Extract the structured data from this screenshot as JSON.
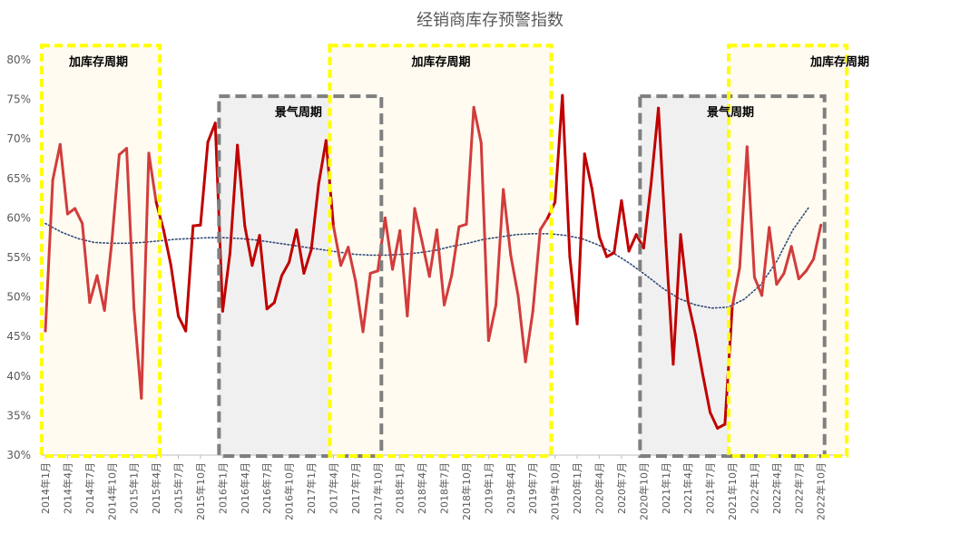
{
  "chart_data": {
    "type": "line",
    "title": "经销商库存预警指数",
    "xlabel": "",
    "ylabel": "",
    "ylim": [
      0.3,
      0.8
    ],
    "y_ticks": [
      "30%",
      "35%",
      "40%",
      "45%",
      "50%",
      "55%",
      "60%",
      "65%",
      "70%",
      "75%",
      "80%"
    ],
    "x_ticks": [
      "2014年1月",
      "2014年4月",
      "2014年7月",
      "2014年10月",
      "2015年1月",
      "2015年4月",
      "2015年7月",
      "2015年10月",
      "2016年1月",
      "2016年4月",
      "2016年7月",
      "2016年10月",
      "2017年1月",
      "2017年4月",
      "2017年7月",
      "2017年10月",
      "2018年1月",
      "2018年4月",
      "2018年7月",
      "2018年10月",
      "2019年1月",
      "2019年4月",
      "2019年7月",
      "2019年10月",
      "2020年1月",
      "2020年4月",
      "2020年7月",
      "2020年10月",
      "2021年1月",
      "2021年4月",
      "2021年7月",
      "2021年10月",
      "2022年1月",
      "2022年4月",
      "2022年7月",
      "2022年10月"
    ],
    "x_start": "2014-01",
    "series": [
      {
        "values": [
          0.457,
          0.648,
          0.693,
          0.605,
          0.612,
          0.593,
          0.493,
          0.527,
          0.483,
          0.57,
          0.68,
          0.688,
          0.485,
          0.372,
          0.682,
          0.62,
          0.585,
          0.54,
          0.476,
          0.457,
          0.59,
          0.591,
          0.696,
          0.72,
          0.482,
          0.556,
          0.692,
          0.59,
          0.54,
          0.578,
          0.485,
          0.493,
          0.527,
          0.544,
          0.585,
          0.53,
          0.56,
          0.643,
          0.698,
          0.59,
          0.54,
          0.563,
          0.52,
          0.456,
          0.53,
          0.533,
          0.6,
          0.535,
          0.584,
          0.476,
          0.612,
          0.57,
          0.526,
          0.585,
          0.49,
          0.527,
          0.589,
          0.592,
          0.74,
          0.695,
          0.445,
          0.49,
          0.636,
          0.553,
          0.502,
          0.418,
          0.482,
          0.585,
          0.6,
          0.62,
          0.755,
          0.551,
          0.466,
          0.681,
          0.637,
          0.576,
          0.551,
          0.556,
          0.622,
          0.558,
          0.579,
          0.562,
          0.643,
          0.739,
          0.57,
          0.415,
          0.579,
          0.495,
          0.453,
          0.402,
          0.354,
          0.334,
          0.339,
          0.488,
          0.537,
          0.69,
          0.525,
          0.502,
          0.588,
          0.516,
          0.53,
          0.564,
          0.523,
          0.533,
          0.548,
          0.591
        ],
        "color_light": "#d23c3c",
        "color_dark": "#c00000"
      },
      {
        "type": "trend",
        "values": [
          0.593,
          0.582,
          0.574,
          0.569,
          0.568,
          0.568,
          0.569,
          0.571,
          0.573,
          0.574,
          0.575,
          0.575,
          0.574,
          0.572,
          0.569,
          0.566,
          0.563,
          0.56,
          0.557,
          0.554,
          0.553,
          0.553,
          0.554,
          0.556,
          0.559,
          0.564,
          0.568,
          0.573,
          0.576,
          0.579,
          0.58,
          0.58,
          0.578,
          0.574,
          0.566,
          0.555,
          0.542,
          0.527,
          0.511,
          0.498,
          0.49,
          0.486,
          0.487,
          0.497,
          0.515,
          0.545,
          0.585,
          0.614
        ],
        "x_step_months": 2.2,
        "color": "#2f4a7a"
      }
    ],
    "cycles": [
      {
        "label": "加库存周期",
        "from": "2014-01",
        "to": "2015-04",
        "style": "yellow"
      },
      {
        "label": "景气周期",
        "from": "2016-01",
        "to": "2017-10",
        "style": "gray"
      },
      {
        "label": "加库存周期",
        "from": "2017-04",
        "to": "2019-09",
        "style": "yellow"
      },
      {
        "label": "景气周期",
        "from": "2020-10",
        "to": "2022-10",
        "style": "gray"
      },
      {
        "label": "加库存周期",
        "from": "2021-10",
        "to": "2023-01",
        "style": "yellow"
      }
    ],
    "cycle_top": {
      "yellow": 0.818,
      "gray": 0.754
    },
    "colors": {
      "yellow_border": "#ffff00",
      "yellow_fill": "#fffbf0",
      "gray_border": "#7f7f7f",
      "gray_fill": "#e8e6e6",
      "axis": "#bfbfbf"
    }
  }
}
